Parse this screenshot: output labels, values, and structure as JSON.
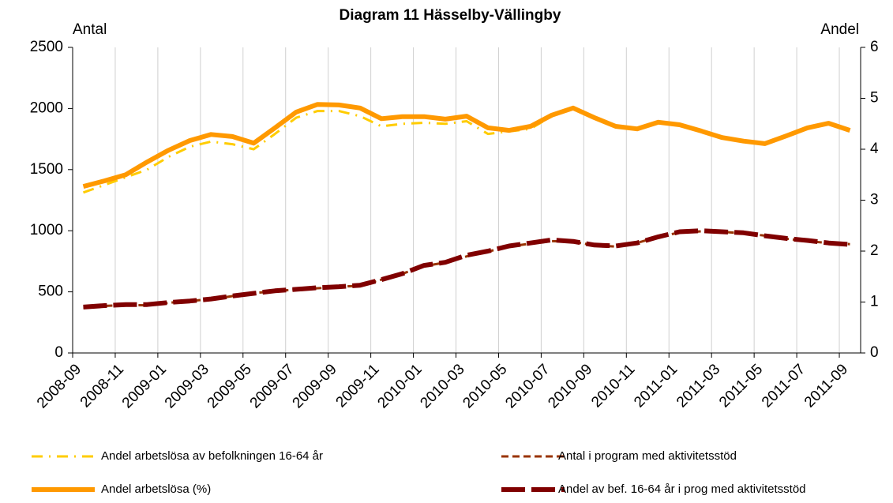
{
  "chart_data": {
    "type": "line",
    "title": "Diagram 11 Hässelby-Vällingby",
    "y_label": "Antal",
    "y2_label": "Andel",
    "categories": [
      "2008-09",
      null,
      "2008-11",
      null,
      "2009-01",
      null,
      "2009-03",
      null,
      "2009-05",
      null,
      "2009-07",
      null,
      "2009-09",
      null,
      "2009-11",
      null,
      "2010-01",
      null,
      "2010-03",
      null,
      "2010-05",
      null,
      "2010-07",
      null,
      "2010-09",
      null,
      "2010-11",
      null,
      "2011-01",
      null,
      "2011-03",
      null,
      "2011-05",
      null,
      "2011-07",
      null,
      "2011-09"
    ],
    "ylim": [
      0,
      2500
    ],
    "yticks": [
      0,
      500,
      1000,
      1500,
      2000,
      2500
    ],
    "y2lim": [
      0,
      6
    ],
    "y2ticks": [
      0,
      1,
      2,
      3,
      4,
      5,
      6
    ],
    "grid": "x",
    "legend": "bottom",
    "series": [
      {
        "name": "Andel arbetslösa av befolkningen 16-64 år",
        "color": "#ffcc00",
        "style": "dashdot",
        "axis": "y2",
        "values": [
          3.15,
          3.3,
          3.45,
          3.6,
          3.85,
          4.05,
          4.15,
          4.1,
          4.0,
          4.3,
          4.62,
          4.75,
          4.75,
          4.65,
          4.45,
          4.5,
          4.52,
          4.5,
          4.55,
          4.3,
          4.35,
          4.4,
          4.65,
          4.8,
          null,
          null,
          null,
          null,
          null,
          null,
          null,
          null,
          null,
          null,
          null,
          null,
          null
        ]
      },
      {
        "name": "Andel arbetslösa (%)",
        "color": "#ff9900",
        "style": "solid",
        "axis": "y2",
        "values": [
          3.27,
          3.38,
          3.5,
          3.75,
          3.98,
          4.17,
          4.29,
          4.25,
          4.12,
          4.42,
          4.73,
          4.88,
          4.87,
          4.81,
          4.6,
          4.64,
          4.64,
          4.59,
          4.65,
          4.42,
          4.37,
          4.45,
          4.67,
          4.81,
          4.62,
          4.45,
          4.4,
          4.53,
          4.48,
          4.36,
          4.23,
          4.16,
          4.11,
          4.26,
          4.42,
          4.51,
          4.37
        ]
      },
      {
        "name": "Antal i program med aktivitetsstöd",
        "color": "#993300",
        "style": "dash",
        "values": [
          370,
          385,
          392,
          390,
          410,
          425,
          440,
          465,
          490,
          505,
          520,
          530,
          540,
          552,
          600,
          650,
          710,
          740,
          790,
          830,
          870,
          895,
          915,
          910,
          880,
          870,
          900,
          950,
          985,
          995,
          990,
          980,
          960,
          935,
          915,
          900,
          890
        ]
      },
      {
        "name": "Andel av bef. 16-64 år i prog med aktivitetsstöd",
        "color": "#800000",
        "style": "longdash",
        "axis": "y2",
        "values": [
          0.9,
          0.93,
          0.95,
          0.95,
          0.99,
          1.02,
          1.06,
          1.12,
          1.17,
          1.22,
          1.25,
          1.28,
          1.3,
          1.33,
          1.44,
          1.56,
          1.72,
          1.78,
          1.92,
          2.0,
          2.1,
          2.16,
          2.22,
          2.19,
          2.12,
          2.1,
          2.16,
          2.28,
          2.38,
          2.4,
          2.38,
          2.36,
          2.3,
          2.25,
          2.21,
          2.16,
          2.13
        ]
      }
    ]
  }
}
